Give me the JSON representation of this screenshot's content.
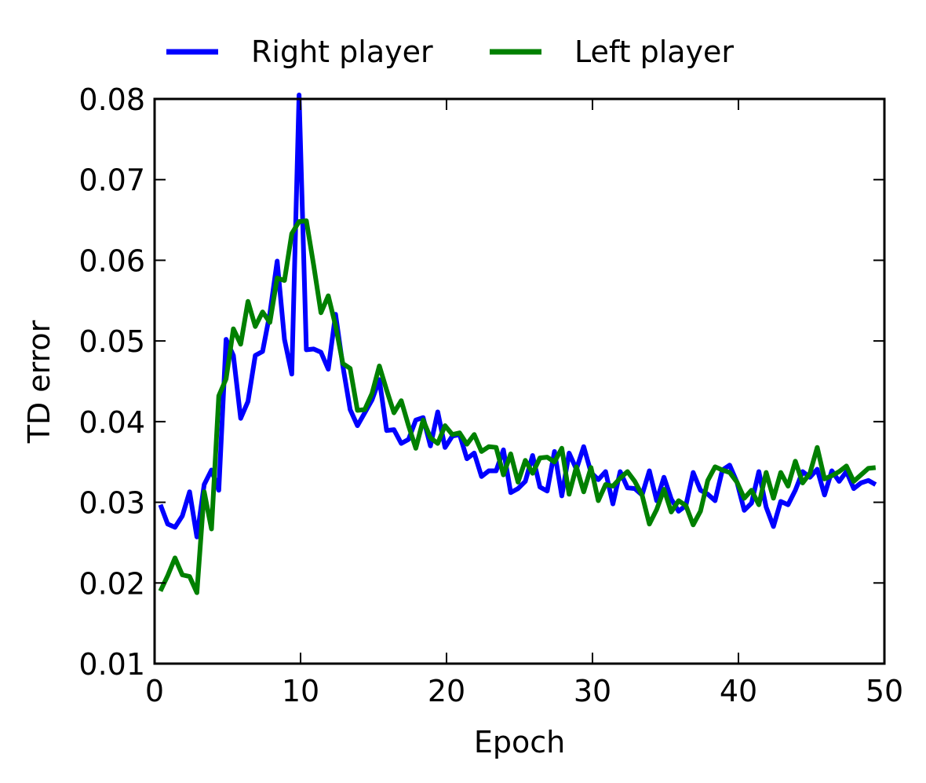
{
  "chart_data": {
    "type": "line",
    "xlabel": "Epoch",
    "ylabel": "TD error",
    "xlim": [
      0,
      50
    ],
    "ylim": [
      0.01,
      0.08
    ],
    "xticks": [
      0,
      10,
      20,
      30,
      40,
      50
    ],
    "yticks": [
      0.01,
      0.02,
      0.03,
      0.04,
      0.05,
      0.06,
      0.07,
      0.08
    ],
    "xtick_labels": [
      "0",
      "10",
      "20",
      "30",
      "40",
      "50"
    ],
    "ytick_labels": [
      "0.01",
      "0.02",
      "0.03",
      "0.04",
      "0.05",
      "0.06",
      "0.07",
      "0.08"
    ],
    "grid": false,
    "legend_position": "top, outside plot",
    "series": [
      {
        "name": "Right player",
        "color": "#0000ff",
        "x": [
          0.4,
          0.9,
          1.4,
          1.9,
          2.4,
          2.9,
          3.4,
          3.9,
          4.4,
          4.9,
          5.4,
          5.9,
          6.4,
          6.9,
          7.4,
          7.9,
          8.4,
          8.9,
          9.4,
          9.9,
          10.4,
          10.9,
          11.4,
          11.9,
          12.4,
          12.9,
          13.4,
          13.9,
          14.4,
          14.9,
          15.4,
          15.9,
          16.4,
          16.9,
          17.4,
          17.9,
          18.4,
          18.9,
          19.4,
          19.9,
          20.4,
          20.9,
          21.4,
          21.9,
          22.4,
          22.9,
          23.4,
          23.9,
          24.4,
          24.9,
          25.4,
          25.9,
          26.4,
          26.9,
          27.4,
          27.9,
          28.4,
          28.9,
          29.4,
          29.9,
          30.4,
          30.9,
          31.4,
          31.9,
          32.4,
          32.9,
          33.4,
          33.9,
          34.4,
          34.9,
          35.4,
          35.9,
          36.4,
          36.9,
          37.4,
          37.9,
          38.4,
          38.9,
          39.4,
          39.9,
          40.4,
          40.9,
          41.4,
          41.9,
          42.4,
          42.9,
          43.4,
          43.9,
          44.4,
          44.9,
          45.4,
          45.9,
          46.4,
          46.9,
          47.4,
          47.9,
          48.4,
          48.9,
          49.4
        ],
        "y": [
          0.0297,
          0.0273,
          0.0269,
          0.0283,
          0.0313,
          0.0257,
          0.0322,
          0.034,
          0.0315,
          0.0502,
          0.0482,
          0.0404,
          0.0425,
          0.0482,
          0.0487,
          0.0534,
          0.0599,
          0.0502,
          0.0459,
          0.0805,
          0.0489,
          0.049,
          0.0486,
          0.0465,
          0.0533,
          0.0469,
          0.0415,
          0.0395,
          0.0411,
          0.0427,
          0.0452,
          0.0389,
          0.039,
          0.0373,
          0.0378,
          0.0402,
          0.0405,
          0.037,
          0.0412,
          0.0368,
          0.0382,
          0.0384,
          0.0354,
          0.0361,
          0.0332,
          0.0339,
          0.0339,
          0.0365,
          0.0312,
          0.0317,
          0.0326,
          0.0358,
          0.0319,
          0.0314,
          0.0363,
          0.0308,
          0.0361,
          0.0341,
          0.0369,
          0.0337,
          0.0328,
          0.0338,
          0.0298,
          0.0338,
          0.0318,
          0.0317,
          0.0309,
          0.0339,
          0.0302,
          0.0331,
          0.0304,
          0.0289,
          0.0296,
          0.0337,
          0.0315,
          0.031,
          0.0302,
          0.034,
          0.0346,
          0.0325,
          0.029,
          0.0299,
          0.0338,
          0.0294,
          0.027,
          0.0301,
          0.0297,
          0.0315,
          0.0338,
          0.0331,
          0.0341,
          0.0309,
          0.0339,
          0.0326,
          0.0338,
          0.0317,
          0.0324,
          0.0327,
          0.0322
        ]
      },
      {
        "name": "Left player",
        "color": "#008000",
        "x": [
          0.4,
          0.9,
          1.4,
          1.9,
          2.4,
          2.9,
          3.4,
          3.9,
          4.4,
          4.9,
          5.4,
          5.9,
          6.4,
          6.9,
          7.4,
          7.9,
          8.4,
          8.9,
          9.4,
          9.9,
          10.4,
          10.9,
          11.4,
          11.9,
          12.4,
          12.9,
          13.4,
          13.9,
          14.4,
          14.9,
          15.4,
          15.9,
          16.4,
          16.9,
          17.4,
          17.9,
          18.4,
          18.9,
          19.4,
          19.9,
          20.4,
          20.9,
          21.4,
          21.9,
          22.4,
          22.9,
          23.4,
          23.9,
          24.4,
          24.9,
          25.4,
          25.9,
          26.4,
          26.9,
          27.4,
          27.9,
          28.4,
          28.9,
          29.4,
          29.9,
          30.4,
          30.9,
          31.4,
          31.9,
          32.4,
          32.9,
          33.4,
          33.9,
          34.4,
          34.9,
          35.4,
          35.9,
          36.4,
          36.9,
          37.4,
          37.9,
          38.4,
          38.9,
          39.4,
          39.9,
          40.4,
          40.9,
          41.4,
          41.9,
          42.4,
          42.9,
          43.4,
          43.9,
          44.4,
          44.9,
          45.4,
          45.9,
          46.4,
          46.9,
          47.4,
          47.9,
          48.4,
          48.9,
          49.4
        ],
        "y": [
          0.019,
          0.0209,
          0.0231,
          0.021,
          0.0208,
          0.0188,
          0.0313,
          0.0267,
          0.0432,
          0.0453,
          0.0515,
          0.0496,
          0.0549,
          0.0518,
          0.0536,
          0.0523,
          0.0578,
          0.0575,
          0.0633,
          0.0648,
          0.0649,
          0.0594,
          0.0535,
          0.0556,
          0.0519,
          0.0472,
          0.0466,
          0.0414,
          0.0415,
          0.0435,
          0.0469,
          0.0439,
          0.0411,
          0.0426,
          0.0395,
          0.0367,
          0.0402,
          0.038,
          0.0373,
          0.0395,
          0.0384,
          0.0386,
          0.0372,
          0.0384,
          0.0363,
          0.0369,
          0.0368,
          0.0334,
          0.036,
          0.0325,
          0.0352,
          0.0336,
          0.0355,
          0.0356,
          0.035,
          0.0367,
          0.031,
          0.0344,
          0.0313,
          0.0343,
          0.0302,
          0.0322,
          0.032,
          0.033,
          0.0338,
          0.0326,
          0.0309,
          0.0273,
          0.0291,
          0.0316,
          0.0288,
          0.0302,
          0.0296,
          0.0272,
          0.0289,
          0.0327,
          0.0344,
          0.034,
          0.0337,
          0.0325,
          0.0305,
          0.0315,
          0.0297,
          0.0337,
          0.0305,
          0.0337,
          0.032,
          0.0351,
          0.0324,
          0.0336,
          0.0368,
          0.0329,
          0.0333,
          0.0338,
          0.0345,
          0.0326,
          0.0334,
          0.0342,
          0.0343
        ]
      }
    ]
  }
}
